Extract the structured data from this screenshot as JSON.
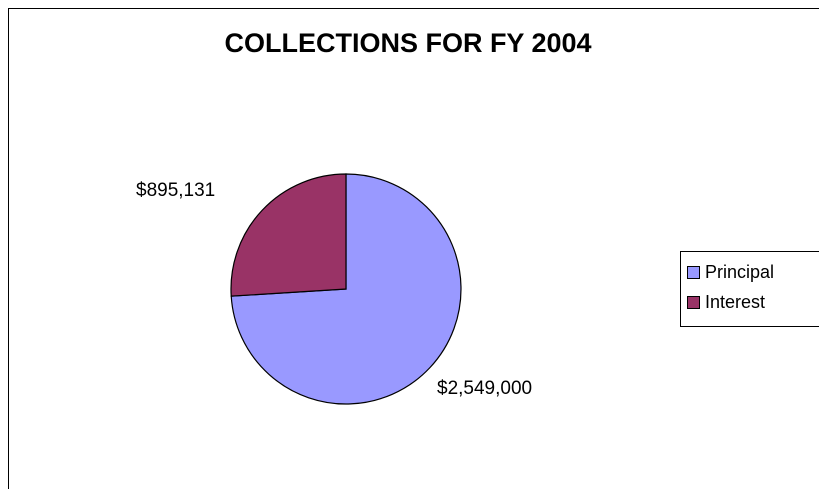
{
  "chart_data": {
    "type": "pie",
    "title": "COLLECTIONS FOR FY 2004",
    "series": [
      {
        "name": "Principal",
        "value": 2549000,
        "label": "$2,549,000",
        "color": "#9999ff"
      },
      {
        "name": "Interest",
        "value": 895131,
        "label": "$895,131",
        "color": "#993366"
      }
    ],
    "legend": {
      "placement": "right",
      "entries": [
        "Principal",
        "Interest"
      ]
    }
  }
}
